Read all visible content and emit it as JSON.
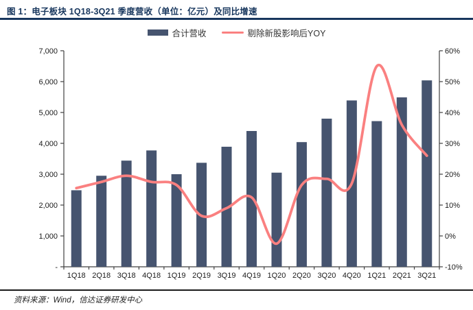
{
  "header": {
    "title": "图 1：电子板块 1Q18-3Q21 季度营收（单位：亿元）及同比增速"
  },
  "legend": {
    "items": [
      {
        "label": "合计营收",
        "type": "bar",
        "color": "#46546F"
      },
      {
        "label": "剔除新股影响后YOY",
        "type": "line",
        "color": "#FA8080"
      }
    ]
  },
  "footer": {
    "source": "资料来源：Wind，信达证券研发中心"
  },
  "colors": {
    "bar": "#46546F",
    "line": "#FA8080",
    "title_navy": "#17365D",
    "axis": "#404040"
  },
  "chart_data": {
    "type": "bar",
    "subtype": "bar-and-line-dual-axis",
    "title": "电子板块 1Q18-3Q21 季度营收（单位：亿元）及同比增速",
    "categories": [
      "1Q18",
      "2Q18",
      "3Q18",
      "4Q18",
      "1Q19",
      "2Q19",
      "3Q19",
      "4Q19",
      "1Q20",
      "2Q20",
      "3Q20",
      "4Q20",
      "1Q21",
      "2Q21",
      "3Q21"
    ],
    "series": [
      {
        "name": "合计营收",
        "type": "bar",
        "axis": "left",
        "color": "#46546F",
        "values": [
          2480,
          2950,
          3440,
          3770,
          3000,
          3370,
          3890,
          4400,
          3050,
          4040,
          4800,
          5390,
          4720,
          5490,
          6040
        ]
      },
      {
        "name": "剔除新股影响后YOY",
        "type": "line",
        "axis": "right",
        "color": "#FA8080",
        "values": [
          15.5,
          17.5,
          19.5,
          17.5,
          16.5,
          6.5,
          9,
          12.5,
          -2.5,
          16.5,
          18.5,
          17,
          55,
          36,
          26
        ]
      }
    ],
    "left_axis": {
      "min": 0,
      "max": 7000,
      "step": 1000,
      "tick_labels_top_to_bottom": [
        "7,000",
        "6,000",
        "5,000",
        "4,000",
        "3,000",
        "2,000",
        "1,000",
        "-"
      ]
    },
    "right_axis": {
      "min": -10,
      "max": 60,
      "step": 10,
      "unit": "%",
      "tick_labels_top_to_bottom": [
        "60%",
        "50%",
        "40%",
        "30%",
        "20%",
        "10%",
        "0%",
        "-10%"
      ]
    },
    "grid": false,
    "legend_position": "top-center"
  }
}
